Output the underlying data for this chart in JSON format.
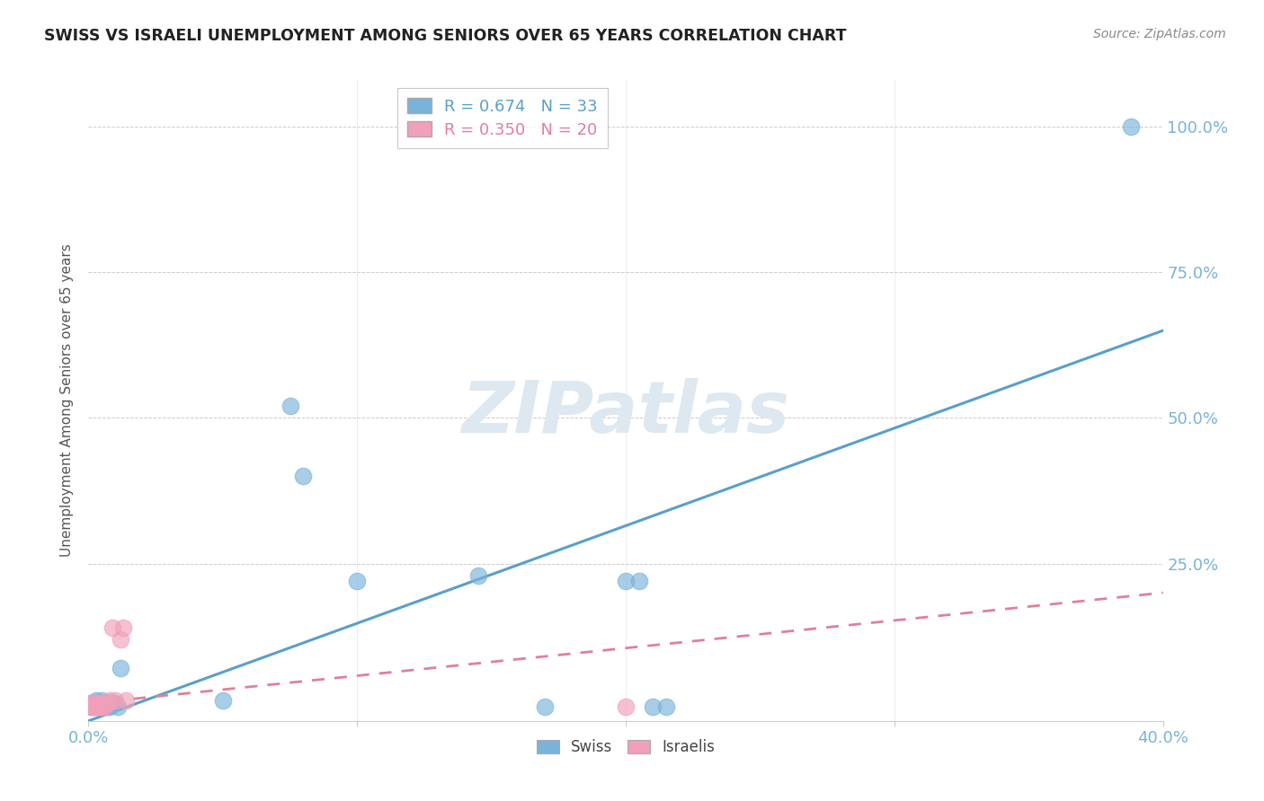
{
  "title": "SWISS VS ISRAELI UNEMPLOYMENT AMONG SENIORS OVER 65 YEARS CORRELATION CHART",
  "source": "Source: ZipAtlas.com",
  "ylabel": "Unemployment Among Seniors over 65 years",
  "xlim": [
    0.0,
    0.4
  ],
  "ylim": [
    -0.02,
    1.08
  ],
  "swiss_color": "#7ab3d9",
  "swiss_line_color": "#5a9fc9",
  "israeli_color": "#f0a0b8",
  "israeli_line_color": "#e08098",
  "swiss_R": 0.674,
  "swiss_N": 33,
  "israeli_R": 0.35,
  "israeli_N": 20,
  "watermark": "ZIPatlas",
  "watermark_color": "#dde8f0",
  "swiss_x": [
    0.001,
    0.001,
    0.002,
    0.002,
    0.003,
    0.003,
    0.003,
    0.004,
    0.004,
    0.005,
    0.005,
    0.005,
    0.006,
    0.006,
    0.007,
    0.007,
    0.008,
    0.008,
    0.009,
    0.01,
    0.011,
    0.012,
    0.05,
    0.075,
    0.08,
    0.1,
    0.145,
    0.17,
    0.2,
    0.205,
    0.21,
    0.215,
    0.388
  ],
  "swiss_y": [
    0.005,
    0.01,
    0.005,
    0.01,
    0.005,
    0.01,
    0.015,
    0.005,
    0.01,
    0.005,
    0.01,
    0.015,
    0.005,
    0.01,
    0.005,
    0.01,
    0.005,
    0.01,
    0.01,
    0.01,
    0.005,
    0.07,
    0.015,
    0.52,
    0.4,
    0.22,
    0.23,
    0.005,
    0.22,
    0.22,
    0.005,
    0.005,
    1.0
  ],
  "israeli_x": [
    0.001,
    0.001,
    0.002,
    0.002,
    0.003,
    0.003,
    0.004,
    0.004,
    0.005,
    0.005,
    0.006,
    0.006,
    0.007,
    0.008,
    0.009,
    0.01,
    0.012,
    0.013,
    0.014,
    0.2
  ],
  "israeli_y": [
    0.005,
    0.01,
    0.005,
    0.01,
    0.005,
    0.01,
    0.005,
    0.01,
    0.005,
    0.01,
    0.005,
    0.01,
    0.01,
    0.015,
    0.14,
    0.015,
    0.12,
    0.14,
    0.015,
    0.005
  ],
  "swiss_line_x0": 0.0,
  "swiss_line_x1": 0.4,
  "swiss_line_y0": -0.02,
  "swiss_line_y1": 0.65,
  "israeli_line_x0": 0.0,
  "israeli_line_x1": 0.4,
  "israeli_line_y0": 0.01,
  "israeli_line_y1": 0.2,
  "background_color": "#ffffff",
  "grid_color": "#cccccc",
  "title_color": "#222222",
  "axis_tick_color": "#7ab3d9"
}
